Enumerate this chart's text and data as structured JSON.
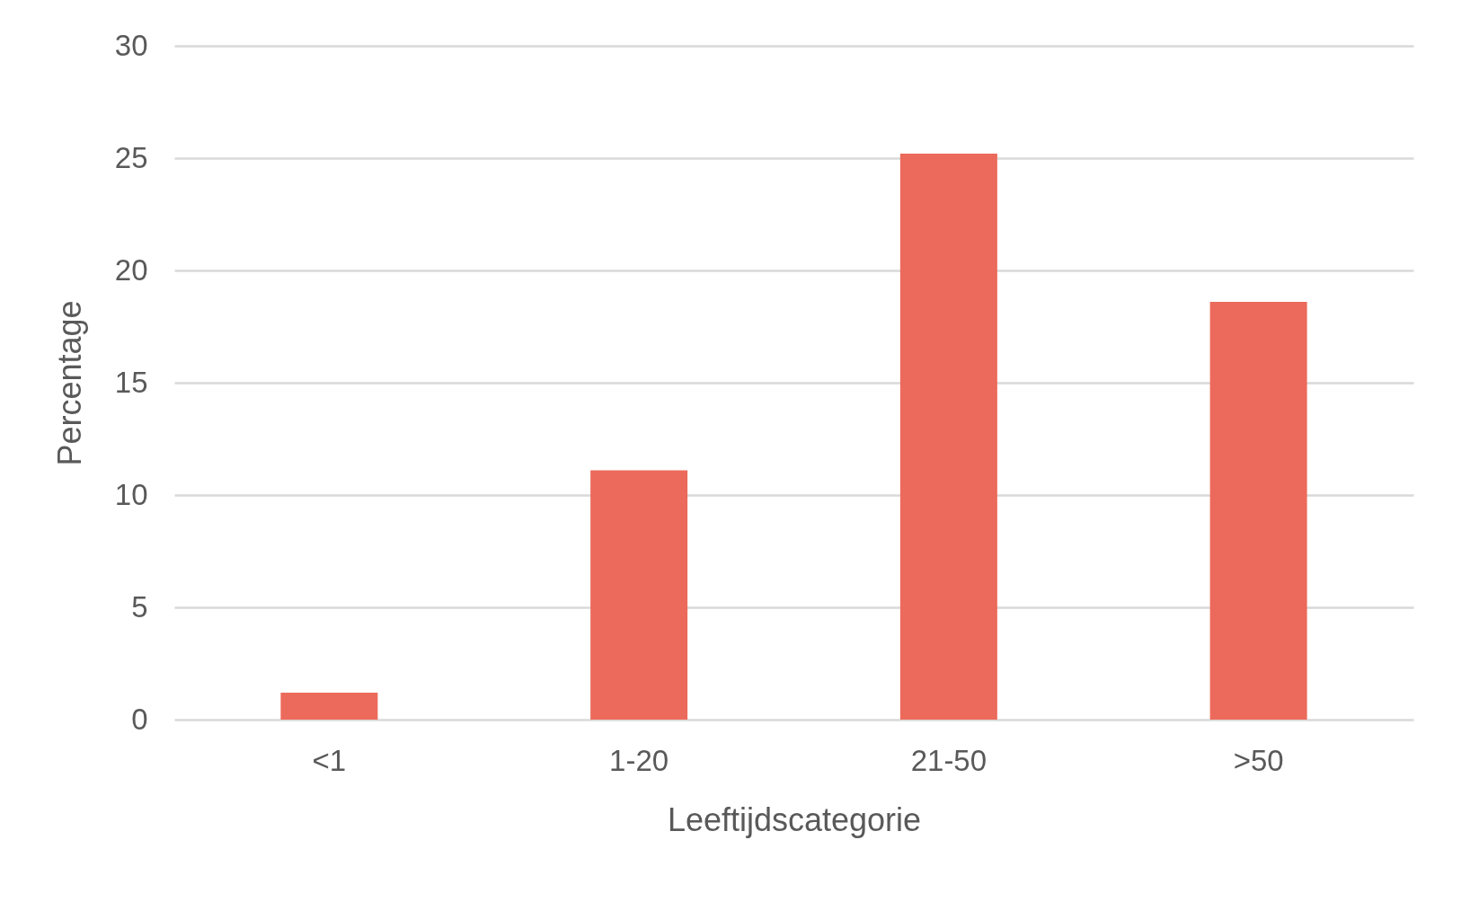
{
  "chart_data": {
    "type": "bar",
    "xlabel": "Leeftijdscategorie",
    "ylabel": "Percentage",
    "categories": [
      "<1",
      "1-20",
      "21-50",
      ">50"
    ],
    "values": [
      1.2,
      11.1,
      25.2,
      18.6
    ],
    "color": "#ec6a5b",
    "ylim": [
      0,
      30
    ],
    "yticks": [
      0,
      5,
      10,
      15,
      20,
      25,
      30
    ],
    "grid": "y"
  }
}
